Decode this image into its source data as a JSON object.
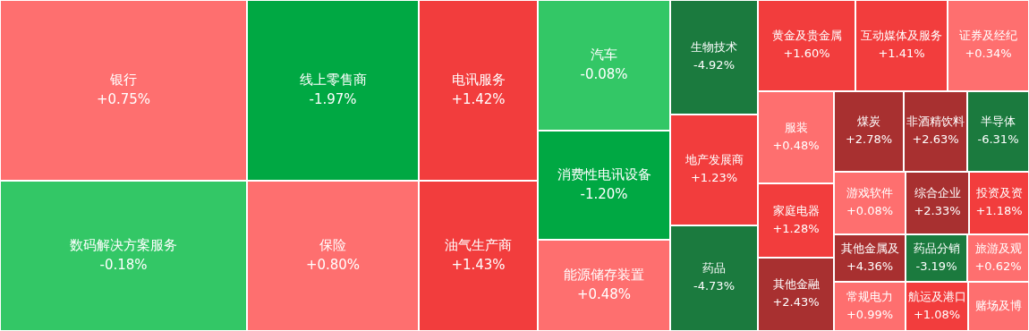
{
  "chart_data": {
    "type": "other",
    "categories": [
      "银行",
      "数码解决方案服务",
      "线上零售商",
      "保险",
      "电讯服务",
      "油气生产商",
      "汽车",
      "消费性电讯设备",
      "能源储存装置",
      "生物技术",
      "地产发展商",
      "药品",
      "黄金及贵金属",
      "互动媒体及服务",
      "证券及经纪",
      "服装",
      "家庭电器",
      "其他金融",
      "煤炭",
      "非酒精饮料",
      "半导体",
      "游戏软件",
      "综合企业",
      "投资及资",
      "其他金属及",
      "药品分销",
      "旅游及观",
      "常规电力",
      "航运及港口",
      "赌场及博"
    ],
    "values": [
      0.75,
      -0.18,
      -1.97,
      0.8,
      1.42,
      1.43,
      -0.08,
      -1.2,
      0.48,
      -4.92,
      1.23,
      -4.73,
      1.6,
      1.41,
      0.34,
      0.48,
      1.28,
      2.43,
      2.78,
      2.63,
      -6.31,
      0.08,
      2.33,
      1.18,
      4.36,
      -3.19,
      0.62,
      0.99,
      1.08,
      null
    ],
    "value_labels": [
      "+0.75%",
      "-0.18%",
      "-1.97%",
      "+0.80%",
      "+1.42%",
      "+1.43%",
      "-0.08%",
      "-1.20%",
      "+0.48%",
      "-4.92%",
      "+1.23%",
      "-4.73%",
      "+1.60%",
      "+1.41%",
      "+0.34%",
      "+0.48%",
      "+1.28%",
      "+2.43%",
      "+2.78%",
      "+2.63%",
      "-6.31%",
      "+0.08%",
      "+2.33%",
      "+1.18%",
      "+4.36%",
      "-3.19%",
      "+0.62%",
      "+0.99%",
      "+1.08%",
      null
    ]
  }
}
